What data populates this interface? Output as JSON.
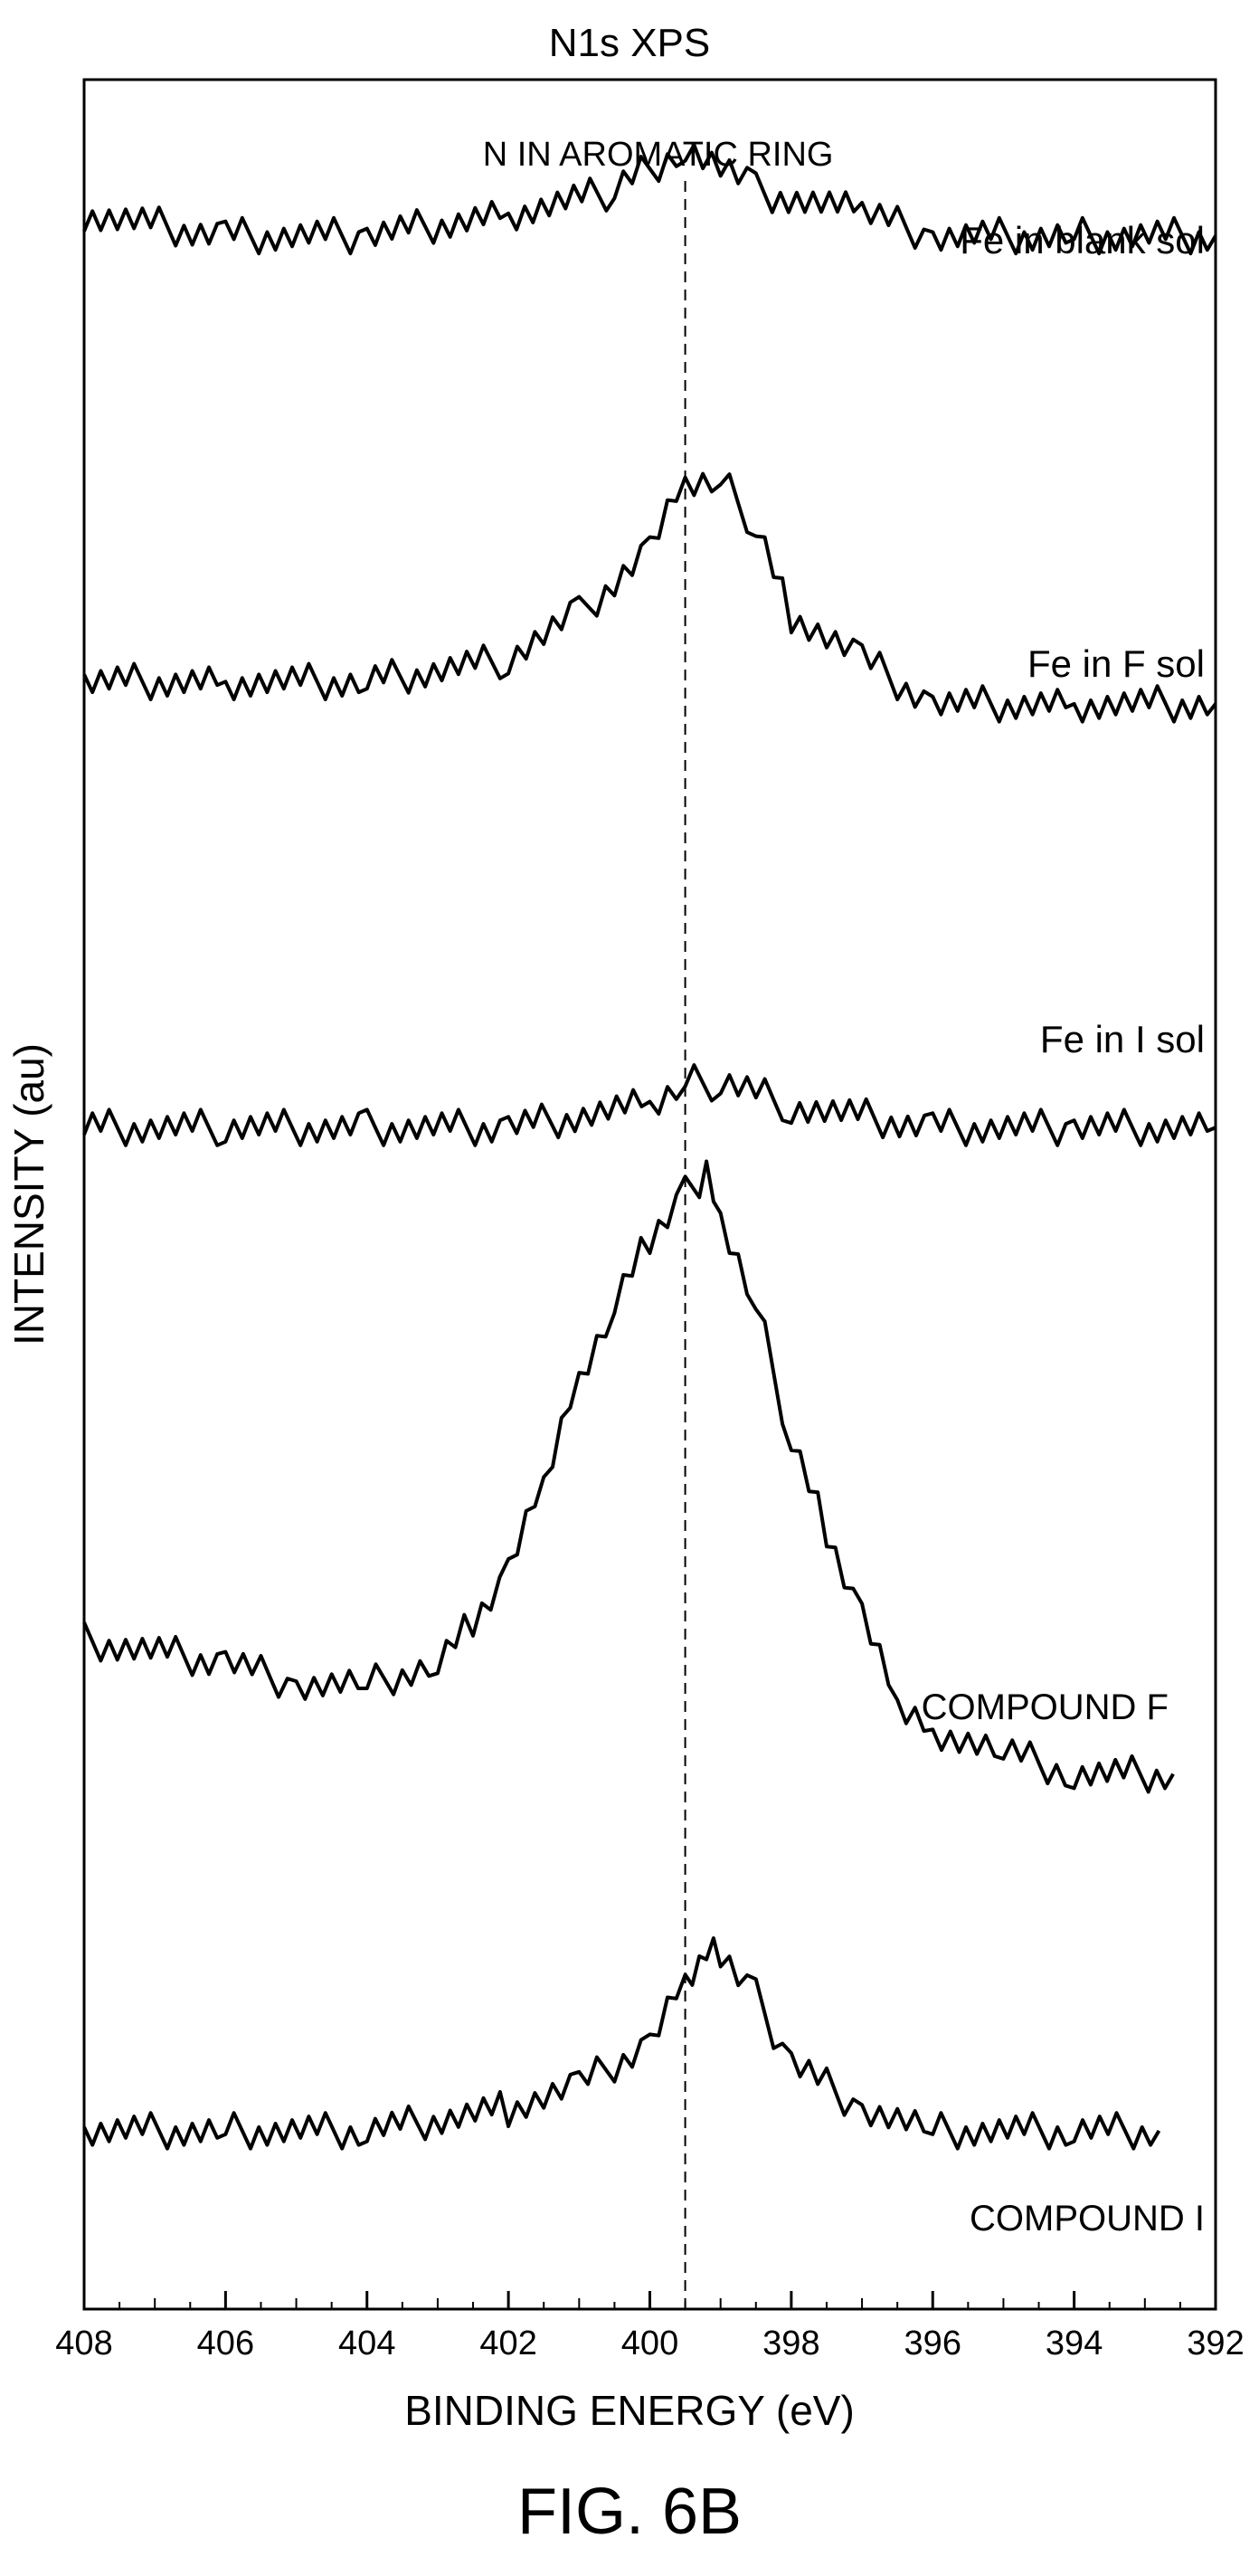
{
  "chart_data": {
    "type": "line",
    "title": "N1s XPS",
    "xlabel": "BINDING ENERGY (eV)",
    "ylabel": "INTENSITY (au)",
    "xlim": [
      408,
      392
    ],
    "x_reversed": true,
    "x_ticks": [
      408,
      406,
      404,
      402,
      400,
      398,
      396,
      394,
      392
    ],
    "y_ticks_shown": false,
    "grid": false,
    "legend": "none",
    "annotations": [
      {
        "text": "N IN AROMATIC RING",
        "x": 399.5,
        "style": "dashed vertical line"
      }
    ],
    "series": [
      {
        "name": "Fe in blank sol",
        "x": [
          408,
          406,
          404,
          402,
          400.5,
          399.5,
          398.5,
          397,
          396,
          394,
          392
        ],
        "y": [
          0.94,
          0.93,
          0.93,
          0.94,
          0.95,
          0.97,
          0.95,
          0.94,
          0.93,
          0.93,
          0.93
        ]
      },
      {
        "name": "Fe in F sol",
        "x": [
          408,
          406,
          404,
          402,
          401,
          400,
          399.5,
          399,
          398.5,
          398,
          397,
          396,
          394,
          392
        ],
        "y": [
          0.73,
          0.73,
          0.73,
          0.74,
          0.76,
          0.79,
          0.82,
          0.82,
          0.8,
          0.76,
          0.74,
          0.72,
          0.72,
          0.72
        ]
      },
      {
        "name": "Fe in I sol",
        "x": [
          408,
          406,
          404,
          402,
          400,
          399.5,
          399,
          398,
          396,
          394,
          392
        ],
        "y": [
          0.53,
          0.53,
          0.53,
          0.53,
          0.54,
          0.55,
          0.55,
          0.54,
          0.53,
          0.53,
          0.53
        ]
      },
      {
        "name": "COMPOUND F",
        "x": [
          408,
          406,
          405,
          404,
          403,
          402.5,
          402,
          401.5,
          401,
          400.5,
          400,
          399.5,
          399.2,
          399,
          398.5,
          398,
          397.5,
          397,
          396.5,
          396,
          395,
          394,
          392.6
        ],
        "y": [
          0.3,
          0.29,
          0.28,
          0.28,
          0.29,
          0.31,
          0.33,
          0.37,
          0.42,
          0.45,
          0.48,
          0.5,
          0.51,
          0.49,
          0.45,
          0.39,
          0.35,
          0.31,
          0.27,
          0.26,
          0.25,
          0.24,
          0.24
        ]
      },
      {
        "name": "COMPOUND I",
        "x": [
          408,
          406,
          404,
          402,
          401,
          400,
          399.5,
          399.2,
          399,
          398.5,
          398,
          397,
          396,
          394,
          392.8
        ],
        "y": [
          0.08,
          0.08,
          0.08,
          0.09,
          0.1,
          0.12,
          0.15,
          0.16,
          0.16,
          0.14,
          0.11,
          0.09,
          0.08,
          0.08,
          0.08
        ]
      }
    ]
  },
  "figure": {
    "caption": "FIG. 6B"
  }
}
